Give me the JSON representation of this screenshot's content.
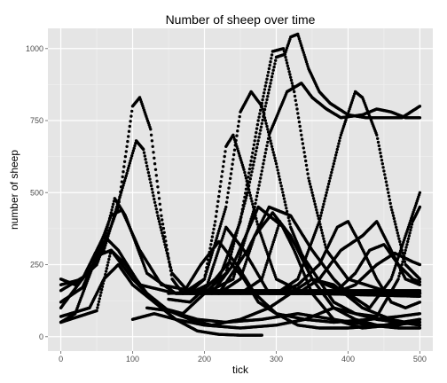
{
  "chart_data": {
    "type": "scatter",
    "title": "Number of sheep over time",
    "xlabel": "tick",
    "ylabel": "number of sheep",
    "xlim": [
      -18,
      518
    ],
    "ylim": [
      -50,
      1070
    ],
    "x_ticks": [
      0,
      100,
      200,
      300,
      400,
      500
    ],
    "y_ticks": [
      0,
      250,
      500,
      750,
      1000
    ],
    "x_tick_labels": [
      "0",
      "100",
      "200",
      "300",
      "400",
      "500"
    ],
    "y_tick_labels": [
      "0",
      "250",
      "500",
      "750",
      "1000"
    ],
    "grid": true,
    "legend": "none",
    "colors": {
      "panel": "#e5e5e5",
      "grid_major": "#ffffff",
      "grid_minor": "#f2f2f2",
      "points": "#000000"
    },
    "series": [
      {
        "values": [
          [
            0,
            200
          ],
          [
            20,
            180
          ],
          [
            50,
            250
          ],
          [
            80,
            450
          ],
          [
            100,
            800
          ],
          [
            110,
            830
          ],
          [
            125,
            720
          ],
          [
            140,
            420
          ],
          [
            155,
            200
          ],
          [
            170,
            150
          ],
          [
            200,
            150
          ],
          [
            250,
            150
          ],
          [
            300,
            150
          ],
          [
            350,
            150
          ],
          [
            400,
            150
          ],
          [
            450,
            150
          ],
          [
            500,
            150
          ]
        ]
      },
      {
        "values": [
          [
            0,
            180
          ],
          [
            30,
            200
          ],
          [
            60,
            300
          ],
          [
            90,
            550
          ],
          [
            105,
            680
          ],
          [
            115,
            650
          ],
          [
            135,
            420
          ],
          [
            155,
            220
          ],
          [
            180,
            150
          ],
          [
            250,
            155
          ],
          [
            350,
            150
          ],
          [
            500,
            140
          ]
        ]
      },
      {
        "values": [
          [
            0,
            120
          ],
          [
            30,
            170
          ],
          [
            60,
            330
          ],
          [
            75,
            480
          ],
          [
            90,
            420
          ],
          [
            120,
            220
          ],
          [
            160,
            150
          ],
          [
            250,
            150
          ],
          [
            500,
            150
          ]
        ]
      },
      {
        "values": [
          [
            0,
            160
          ],
          [
            40,
            220
          ],
          [
            70,
            420
          ],
          [
            85,
            440
          ],
          [
            110,
            300
          ],
          [
            140,
            180
          ],
          [
            180,
            160
          ],
          [
            500,
            160
          ]
        ]
      },
      {
        "values": [
          [
            0,
            100
          ],
          [
            30,
            200
          ],
          [
            60,
            350
          ],
          [
            80,
            300
          ],
          [
            110,
            180
          ],
          [
            160,
            150
          ],
          [
            500,
            155
          ]
        ]
      },
      {
        "values": [
          [
            0,
            70
          ],
          [
            40,
            100
          ],
          [
            60,
            200
          ],
          [
            80,
            250
          ],
          [
            100,
            180
          ],
          [
            130,
            120
          ],
          [
            160,
            60
          ],
          [
            190,
            20
          ],
          [
            220,
            8
          ],
          [
            250,
            5
          ],
          [
            280,
            5
          ]
        ]
      },
      {
        "values": [
          [
            0,
            50
          ],
          [
            50,
            90
          ],
          [
            70,
            300
          ],
          [
            90,
            250
          ],
          [
            120,
            150
          ],
          [
            150,
            90
          ],
          [
            190,
            60
          ],
          [
            230,
            50
          ],
          [
            280,
            60
          ],
          [
            330,
            80
          ],
          [
            380,
            60
          ],
          [
            430,
            40
          ],
          [
            470,
            30
          ],
          [
            500,
            30
          ]
        ]
      },
      {
        "values": [
          [
            0,
            50
          ],
          [
            20,
            80
          ],
          [
            50,
            280
          ],
          [
            70,
            300
          ],
          [
            100,
            200
          ],
          [
            140,
            100
          ],
          [
            170,
            80
          ],
          [
            200,
            150
          ],
          [
            230,
            380
          ],
          [
            255,
            300
          ],
          [
            290,
            150
          ],
          [
            350,
            150
          ],
          [
            500,
            150
          ]
        ]
      },
      {
        "values": [
          [
            150,
            150
          ],
          [
            180,
            155
          ],
          [
            200,
            200
          ],
          [
            215,
            400
          ],
          [
            230,
            660
          ],
          [
            240,
            700
          ],
          [
            255,
            580
          ],
          [
            275,
            380
          ],
          [
            300,
            200
          ],
          [
            340,
            150
          ],
          [
            500,
            150
          ]
        ]
      },
      {
        "values": [
          [
            170,
            150
          ],
          [
            200,
            200
          ],
          [
            230,
            450
          ],
          [
            250,
            780
          ],
          [
            265,
            850
          ],
          [
            280,
            800
          ],
          [
            300,
            600
          ],
          [
            320,
            380
          ],
          [
            350,
            200
          ],
          [
            400,
            150
          ],
          [
            500,
            150
          ]
        ]
      },
      {
        "values": [
          [
            180,
            150
          ],
          [
            220,
            200
          ],
          [
            250,
            400
          ],
          [
            275,
            750
          ],
          [
            295,
            990
          ],
          [
            310,
            1000
          ],
          [
            325,
            850
          ],
          [
            345,
            550
          ],
          [
            370,
            300
          ],
          [
            400,
            200
          ],
          [
            450,
            160
          ],
          [
            500,
            150
          ]
        ]
      },
      {
        "values": [
          [
            200,
            150
          ],
          [
            230,
            220
          ],
          [
            260,
            500
          ],
          [
            285,
            800
          ],
          [
            300,
            970
          ],
          [
            312,
            980
          ],
          [
            320,
            1040
          ],
          [
            330,
            1050
          ],
          [
            345,
            930
          ],
          [
            360,
            850
          ],
          [
            375,
            810
          ],
          [
            400,
            770
          ],
          [
            425,
            760
          ],
          [
            450,
            760
          ],
          [
            475,
            760
          ],
          [
            500,
            800
          ]
        ]
      },
      {
        "values": [
          [
            200,
            150
          ],
          [
            240,
            200
          ],
          [
            270,
            450
          ],
          [
            290,
            700
          ],
          [
            315,
            850
          ],
          [
            335,
            880
          ],
          [
            350,
            830
          ],
          [
            370,
            790
          ],
          [
            390,
            760
          ],
          [
            420,
            770
          ],
          [
            440,
            790
          ],
          [
            460,
            780
          ],
          [
            480,
            760
          ],
          [
            500,
            760
          ]
        ]
      },
      {
        "values": [
          [
            300,
            150
          ],
          [
            330,
            200
          ],
          [
            360,
            400
          ],
          [
            390,
            700
          ],
          [
            410,
            850
          ],
          [
            420,
            830
          ],
          [
            440,
            700
          ],
          [
            460,
            450
          ],
          [
            480,
            250
          ],
          [
            500,
            200
          ]
        ]
      },
      {
        "values": [
          [
            220,
            150
          ],
          [
            260,
            300
          ],
          [
            290,
            450
          ],
          [
            320,
            420
          ],
          [
            350,
            300
          ],
          [
            380,
            200
          ],
          [
            400,
            150
          ],
          [
            430,
            100
          ],
          [
            460,
            200
          ],
          [
            480,
            350
          ],
          [
            500,
            500
          ]
        ]
      },
      {
        "values": [
          [
            210,
            150
          ],
          [
            240,
            250
          ],
          [
            275,
            450
          ],
          [
            310,
            380
          ],
          [
            345,
            250
          ],
          [
            380,
            120
          ],
          [
            410,
            80
          ],
          [
            440,
            70
          ],
          [
            470,
            200
          ],
          [
            490,
            400
          ],
          [
            500,
            450
          ]
        ]
      },
      {
        "values": [
          [
            220,
            150
          ],
          [
            250,
            200
          ],
          [
            270,
            350
          ],
          [
            295,
            430
          ],
          [
            320,
            350
          ],
          [
            350,
            200
          ],
          [
            380,
            100
          ],
          [
            410,
            60
          ],
          [
            440,
            40
          ],
          [
            470,
            40
          ],
          [
            500,
            60
          ]
        ]
      },
      {
        "values": [
          [
            250,
            150
          ],
          [
            280,
            200
          ],
          [
            305,
            400
          ],
          [
            325,
            300
          ],
          [
            350,
            150
          ],
          [
            380,
            60
          ],
          [
            420,
            30
          ],
          [
            460,
            40
          ],
          [
            500,
            50
          ]
        ]
      },
      {
        "values": [
          [
            170,
            150
          ],
          [
            195,
            250
          ],
          [
            220,
            330
          ],
          [
            245,
            250
          ],
          [
            270,
            150
          ],
          [
            300,
            80
          ],
          [
            330,
            40
          ],
          [
            360,
            30
          ],
          [
            400,
            30
          ],
          [
            450,
            40
          ],
          [
            500,
            60
          ]
        ]
      },
      {
        "values": [
          [
            150,
            130
          ],
          [
            180,
            120
          ],
          [
            215,
            200
          ],
          [
            235,
            260
          ],
          [
            255,
            200
          ],
          [
            275,
            120
          ],
          [
            300,
            80
          ],
          [
            340,
            60
          ],
          [
            380,
            50
          ],
          [
            430,
            60
          ],
          [
            470,
            70
          ],
          [
            500,
            80
          ]
        ]
      },
      {
        "values": [
          [
            300,
            150
          ],
          [
            330,
            180
          ],
          [
            360,
            250
          ],
          [
            385,
            380
          ],
          [
            400,
            400
          ],
          [
            415,
            330
          ],
          [
            440,
            200
          ],
          [
            460,
            120
          ],
          [
            480,
            100
          ],
          [
            500,
            120
          ]
        ]
      },
      {
        "values": [
          [
            330,
            150
          ],
          [
            360,
            200
          ],
          [
            390,
            300
          ],
          [
            420,
            350
          ],
          [
            440,
            400
          ],
          [
            460,
            300
          ],
          [
            480,
            200
          ],
          [
            500,
            180
          ]
        ]
      },
      {
        "values": [
          [
            350,
            150
          ],
          [
            380,
            150
          ],
          [
            410,
            220
          ],
          [
            430,
            300
          ],
          [
            450,
            320
          ],
          [
            470,
            250
          ],
          [
            490,
            200
          ],
          [
            500,
            190
          ]
        ]
      },
      {
        "values": [
          [
            380,
            150
          ],
          [
            410,
            180
          ],
          [
            440,
            250
          ],
          [
            465,
            290
          ],
          [
            490,
            260
          ],
          [
            500,
            250
          ]
        ]
      },
      {
        "values": [
          [
            100,
            60
          ],
          [
            130,
            80
          ],
          [
            160,
            60
          ],
          [
            200,
            40
          ],
          [
            250,
            30
          ],
          [
            300,
            40
          ],
          [
            340,
            60
          ],
          [
            380,
            100
          ],
          [
            410,
            80
          ],
          [
            440,
            60
          ],
          [
            470,
            50
          ],
          [
            500,
            40
          ]
        ]
      },
      {
        "values": [
          [
            120,
            100
          ],
          [
            150,
            90
          ],
          [
            180,
            60
          ],
          [
            210,
            40
          ],
          [
            250,
            60
          ],
          [
            290,
            100
          ],
          [
            320,
            150
          ],
          [
            350,
            200
          ],
          [
            380,
            180
          ],
          [
            420,
            100
          ],
          [
            460,
            60
          ],
          [
            500,
            40
          ]
        ]
      }
    ]
  }
}
